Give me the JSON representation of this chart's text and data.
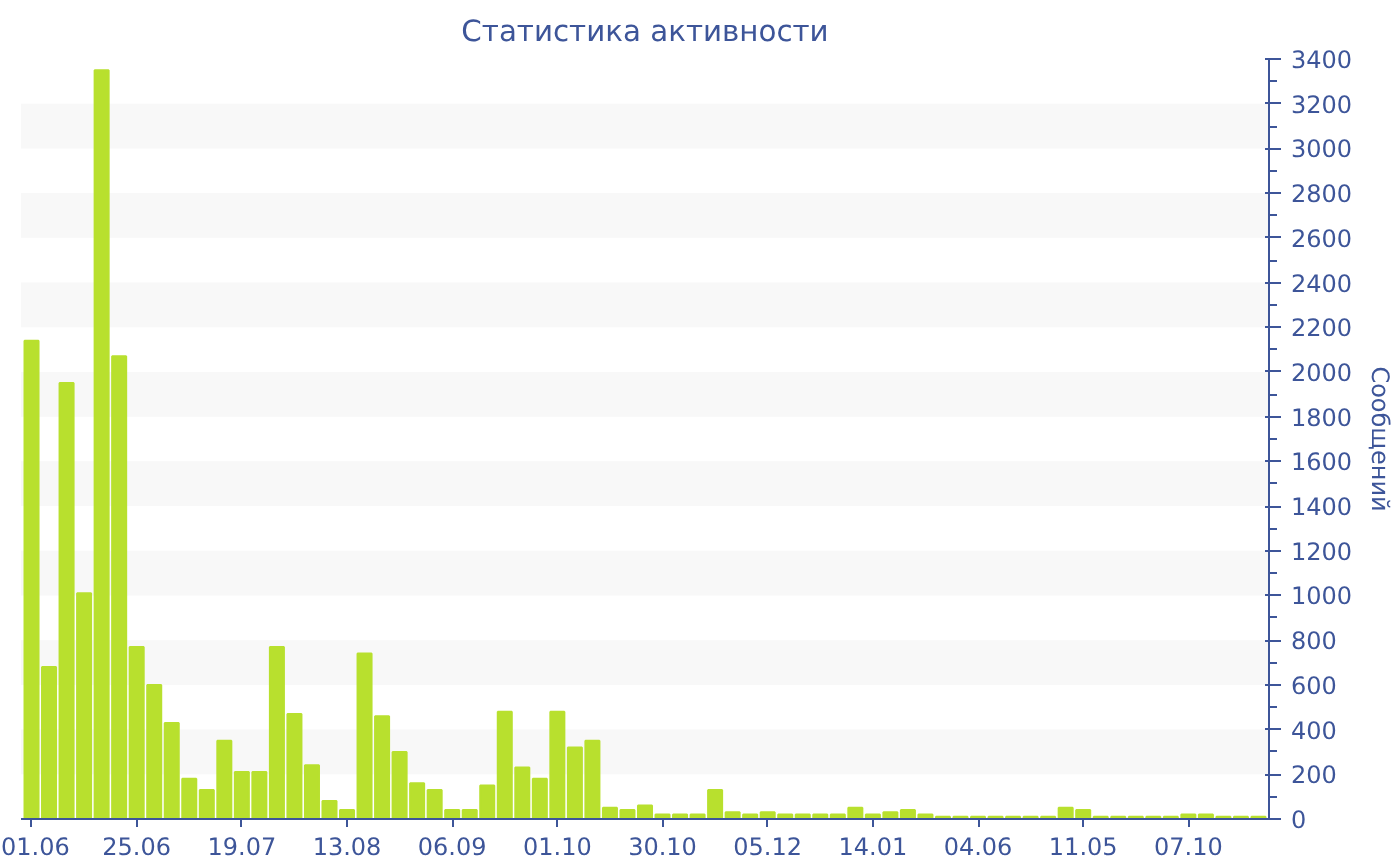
{
  "chart_data": {
    "type": "bar",
    "title": "Статистика активности",
    "y2label": "Сообщений",
    "categories": [
      "01.06",
      null,
      null,
      null,
      null,
      null,
      "25.06",
      null,
      null,
      null,
      null,
      null,
      "19.07",
      null,
      null,
      null,
      null,
      null,
      "13.08",
      null,
      null,
      null,
      null,
      null,
      "06.09",
      null,
      null,
      null,
      null,
      null,
      "01.10",
      null,
      null,
      null,
      null,
      null,
      "30.10",
      null,
      null,
      null,
      null,
      null,
      "05.12",
      null,
      null,
      null,
      null,
      null,
      "14.01",
      null,
      null,
      null,
      null,
      null,
      "04.06",
      null,
      null,
      null,
      null,
      null,
      "11.05",
      null,
      null,
      null,
      null,
      null,
      "07.10",
      null,
      null,
      null,
      null
    ],
    "series": [
      {
        "axis": "y2",
        "color": "#b8e02e",
        "values": [
          2140,
          680,
          1950,
          1010,
          3350,
          2070,
          770,
          600,
          430,
          180,
          130,
          350,
          210,
          210,
          770,
          470,
          240,
          80,
          40,
          740,
          460,
          300,
          160,
          130,
          40,
          40,
          150,
          480,
          230,
          180,
          480,
          320,
          350,
          50,
          40,
          60,
          20,
          20,
          20,
          130,
          30,
          20,
          30,
          20,
          20,
          20,
          20,
          50,
          20,
          30,
          40,
          20,
          10,
          10,
          10,
          10,
          10,
          10,
          10,
          50,
          40,
          10,
          10,
          10,
          10,
          10,
          20,
          20,
          10,
          10,
          10
        ]
      }
    ],
    "y2lim": [
      0,
      3400
    ],
    "y2ticks": [
      0,
      200,
      400,
      600,
      800,
      1000,
      1200,
      1400,
      1600,
      1800,
      2000,
      2200,
      2400,
      2600,
      2800,
      3000,
      3200,
      3400
    ]
  }
}
